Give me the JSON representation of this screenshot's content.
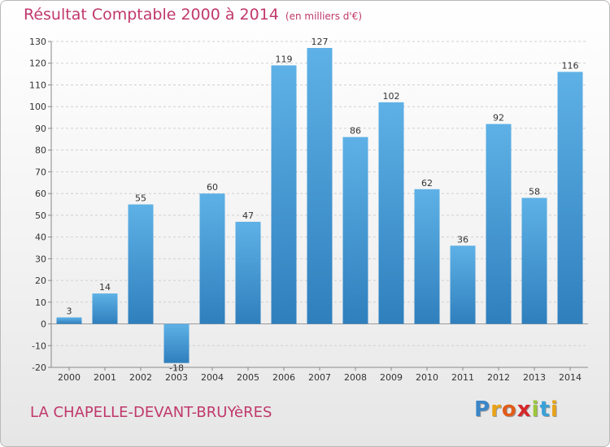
{
  "header": {
    "title": "Résultat Comptable 2000 à 2014",
    "subtitle": "(en milliers d'€)"
  },
  "footer": {
    "place": "LA CHAPELLE-DEVANT-BRUYèRES",
    "logo": [
      "P",
      "r",
      "o",
      "x",
      "i",
      "t",
      "i"
    ]
  },
  "colors": {
    "accent": "#c0386b",
    "bar_light": "#5eb1e6",
    "bar_dark": "#2f7fbd",
    "grid": "#cfcfcf"
  },
  "chart_data": {
    "type": "bar",
    "categories": [
      "2000",
      "2001",
      "2002",
      "2003",
      "2004",
      "2005",
      "2006",
      "2007",
      "2008",
      "2009",
      "2010",
      "2011",
      "2012",
      "2013",
      "2014"
    ],
    "values": [
      3,
      14,
      55,
      -18,
      60,
      47,
      119,
      127,
      86,
      102,
      62,
      36,
      92,
      58,
      116
    ],
    "ylim": [
      -20,
      130
    ],
    "yticks": [
      -20,
      -10,
      0,
      10,
      20,
      30,
      40,
      50,
      60,
      70,
      80,
      90,
      100,
      110,
      120,
      130
    ],
    "grid": true
  }
}
